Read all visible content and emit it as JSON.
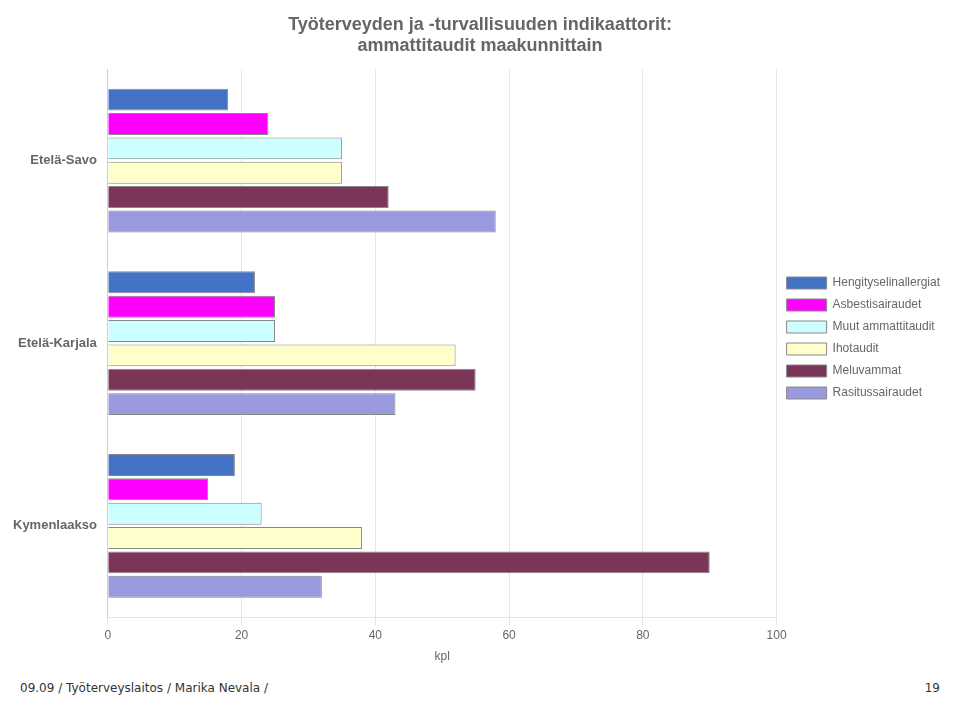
{
  "chart_data": {
    "type": "bar",
    "orientation": "horizontal",
    "title": [
      "Työterveyden ja -turvallisuuden indikaattorit:",
      "ammattitaudit maakunnittain"
    ],
    "categories": [
      "Etelä-Savo",
      "Etelä-Karjala",
      "Kymenlaakso"
    ],
    "series": [
      {
        "name": "Hengityselinallergiat",
        "color": "#4472C4",
        "values": [
          18,
          22,
          19
        ]
      },
      {
        "name": "Asbestisairaudet",
        "color": "#FF00FF",
        "values": [
          24,
          25,
          15
        ]
      },
      {
        "name": "Muut ammattitaudit",
        "color": "#CCFFFF",
        "values": [
          35,
          25,
          23
        ]
      },
      {
        "name": "Ihotaudit",
        "color": "#FFFFCC",
        "values": [
          35,
          52,
          38
        ]
      },
      {
        "name": "Meluvammat",
        "color": "#7B3558",
        "values": [
          42,
          55,
          90
        ]
      },
      {
        "name": "Rasitussairaudet",
        "color": "#9999DD",
        "values": [
          58,
          43,
          32
        ]
      }
    ],
    "xlabel": "kpl",
    "xlim": [
      0,
      100
    ],
    "xticks": [
      0,
      20,
      40,
      60,
      80,
      100
    ],
    "grid": true,
    "legend": "right",
    "annotations": [
      "09.09 / Työterveyslaitos / Marika Nevala /",
      "19"
    ]
  }
}
